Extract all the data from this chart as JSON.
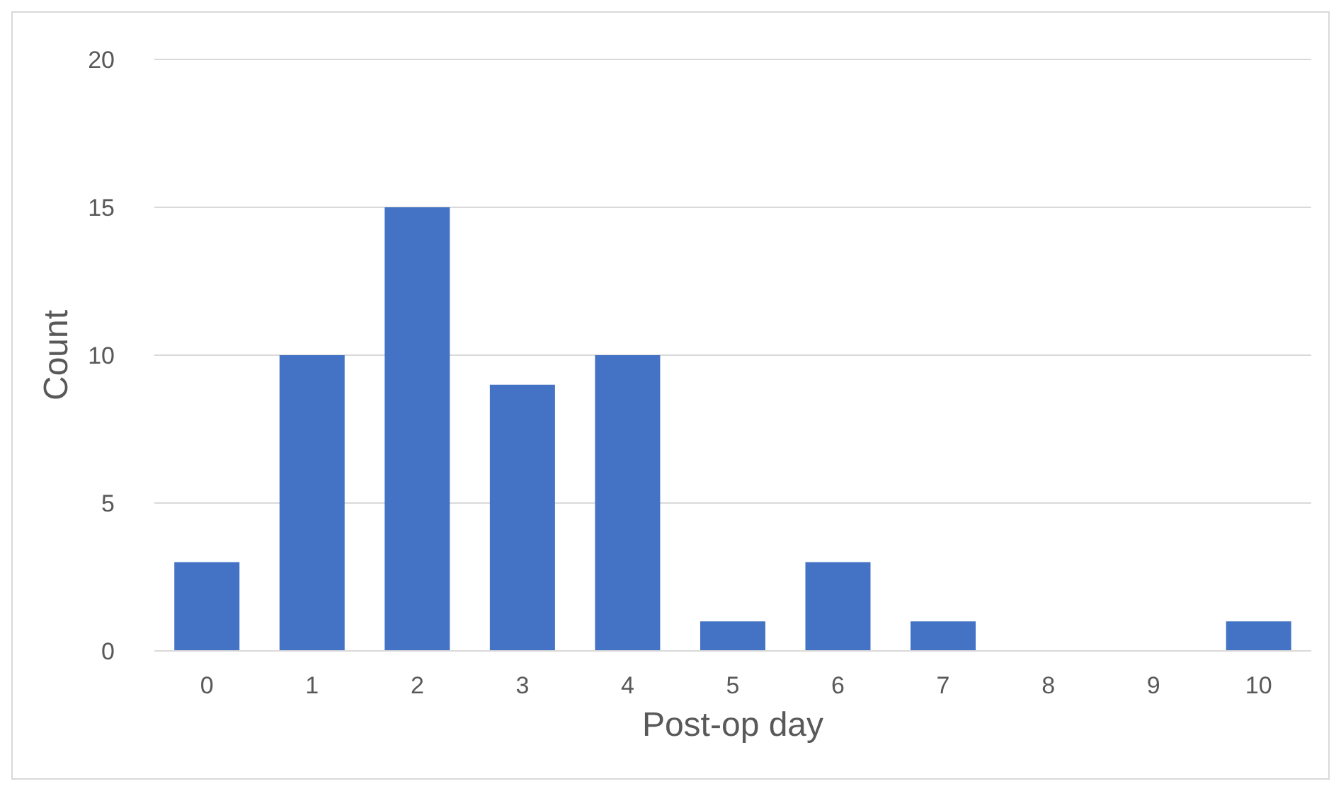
{
  "chart_data": {
    "type": "bar",
    "xlabel": "Post-op day",
    "ylabel": "Count",
    "categories": [
      "0",
      "1",
      "2",
      "3",
      "4",
      "5",
      "6",
      "7",
      "8",
      "9",
      "10"
    ],
    "values": [
      3,
      10,
      15,
      9,
      10,
      1,
      3,
      1,
      0,
      0,
      1
    ],
    "color": "#4472c4",
    "ylim": [
      0,
      20
    ],
    "yticks": [
      0,
      5,
      10,
      15,
      20
    ],
    "grid": "y"
  }
}
